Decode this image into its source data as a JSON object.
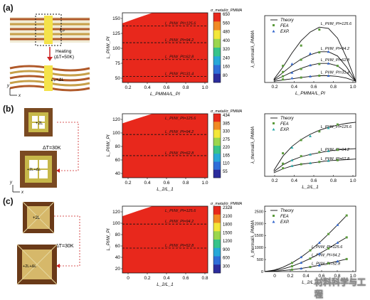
{
  "panels": [
    "(a)",
    "(b)",
    "(c)"
  ],
  "schematics": [
    {
      "heating_label": "Heating",
      "temp_label": "(ΔT=50K)",
      "top_label": "Lₚ",
      "bottom_label": "Lₚ+ΔL",
      "axis_x": "x",
      "axis_y": "y"
    },
    {
      "temp_label": "ΔT=30K",
      "top_label": "+2L",
      "bottom_label": "+2L+ΔL",
      "axis_x": "x",
      "axis_y": "y"
    },
    {
      "temp_label": "ΔT=30K",
      "top_label": "+2L",
      "bottom_label": "+2L+ΔL",
      "axis_x": "x",
      "axis_y": "y"
    }
  ],
  "chart_data": [
    {
      "type": "heatmap",
      "title": "σ_metal/σ_PMMA",
      "xlabel": "L_PMMA/L_PI",
      "ylabel": "L_PI/W_PI",
      "xlim": [
        0.1,
        1.0
      ],
      "ylim": [
        20,
        150
      ],
      "xticks": [
        "0.2",
        "0.4",
        "0.6",
        "0.8",
        "1.0"
      ],
      "yticks": [
        "50",
        "75",
        "100",
        "125",
        "150"
      ],
      "dashed_lines": [
        125.6,
        94.2,
        62.8,
        31.4
      ],
      "annotations": [
        "L_PI/W_PI=125.6",
        "L_PI/W_PI=94.2",
        "L_PI/W_PI=62.8",
        "L_PI/W_PI=31.4"
      ],
      "colorbar": {
        "ticks": [
          "650",
          "560",
          "480",
          "400",
          "320",
          "240",
          "160",
          "80"
        ],
        "colors": [
          "#e8281c",
          "#f08a26",
          "#f3e73a",
          "#9bd64d",
          "#37c38a",
          "#27a8d8",
          "#2f6ed8",
          "#2b2c9c"
        ]
      }
    },
    {
      "type": "line",
      "xlabel": "L_PMMA/L_PI",
      "ylabel": "λ_thermal/λ_PMMA",
      "xlim": [
        0,
        1.0
      ],
      "xticks": [
        "0.2",
        "0.4",
        "0.6",
        "0.8",
        "1.0"
      ],
      "legend": [
        {
          "label": "Theory",
          "kind": "line"
        },
        {
          "label": "FEA",
          "kind": "square",
          "color": "#5a9a3a"
        },
        {
          "label": "EXP.",
          "kind": "triangle",
          "color": "#3366cc"
        }
      ],
      "series": [
        {
          "label": "L_PI/W_PI=125.6",
          "x": [
            0.1,
            0.2,
            0.3,
            0.4,
            0.5,
            0.6,
            0.7,
            0.8,
            0.9,
            1.0
          ],
          "y": [
            0.05,
            0.25,
            0.48,
            0.68,
            0.82,
            0.9,
            0.88,
            0.72,
            0.4,
            0.02
          ]
        },
        {
          "label": "L_PI/W_PI=94.2",
          "x": [
            0.1,
            0.2,
            0.3,
            0.4,
            0.5,
            0.6,
            0.7,
            0.8,
            0.9,
            1.0
          ],
          "y": [
            0.04,
            0.16,
            0.28,
            0.38,
            0.45,
            0.5,
            0.5,
            0.43,
            0.25,
            0.02
          ]
        },
        {
          "label": "L_PI/W_PI=62.8",
          "x": [
            0.1,
            0.2,
            0.3,
            0.4,
            0.5,
            0.6,
            0.7,
            0.8,
            0.9,
            1.0
          ],
          "y": [
            0.03,
            0.1,
            0.17,
            0.23,
            0.28,
            0.31,
            0.31,
            0.27,
            0.16,
            0.02
          ]
        },
        {
          "label": "L_PI/W_PI=31.4",
          "x": [
            0.1,
            0.2,
            0.3,
            0.4,
            0.5,
            0.6,
            0.7,
            0.8,
            0.9,
            1.0
          ],
          "y": [
            0.02,
            0.04,
            0.06,
            0.08,
            0.1,
            0.11,
            0.11,
            0.1,
            0.07,
            0.02
          ]
        }
      ],
      "fea": [
        [
          0.2,
          0.27
        ],
        [
          0.4,
          0.6
        ],
        [
          0.6,
          0.86
        ],
        [
          0.2,
          0.17
        ],
        [
          0.4,
          0.37
        ],
        [
          0.6,
          0.49
        ],
        [
          0.2,
          0.1
        ],
        [
          0.4,
          0.22
        ],
        [
          0.6,
          0.3
        ],
        [
          0.8,
          0.27
        ],
        [
          0.2,
          0.05
        ],
        [
          0.4,
          0.08
        ],
        [
          0.6,
          0.11
        ]
      ],
      "exp": [
        [
          0.3,
          0.3
        ],
        [
          0.5,
          0.47
        ],
        [
          0.7,
          0.5
        ],
        [
          0.3,
          0.16
        ],
        [
          0.5,
          0.28
        ],
        [
          0.7,
          0.31
        ],
        [
          0.3,
          0.07
        ],
        [
          0.5,
          0.1
        ],
        [
          0.7,
          0.11
        ]
      ]
    },
    {
      "type": "heatmap",
      "title": "σ_metal/σ_PMMA",
      "xlabel": "L_2/L_1",
      "ylabel": "L_PI/W_PI",
      "xlim": [
        0.1,
        1.0
      ],
      "ylim": [
        30,
        125
      ],
      "xticks": [
        "0.2",
        "0.4",
        "0.6",
        "0.8",
        "1.0"
      ],
      "yticks": [
        "40",
        "60",
        "80",
        "100",
        "120"
      ],
      "dashed_lines": [
        125.6,
        94.2,
        62.8
      ],
      "annotations": [
        "L_PI/W_PI=125.6",
        "L_PI/W_PI=94.2",
        "L_PI/W_PI=62.8"
      ],
      "colorbar": {
        "ticks": [
          "434",
          "385",
          "330",
          "275",
          "220",
          "165",
          "110",
          "55"
        ],
        "colors": [
          "#e8281c",
          "#f08a26",
          "#f3e73a",
          "#9bd64d",
          "#37c38a",
          "#27a8d8",
          "#2f6ed8",
          "#2b2c9c"
        ]
      }
    },
    {
      "type": "line",
      "xlabel": "L_2/L_1",
      "ylabel": "λ_thermal/λ_PMMA",
      "xlim": [
        0,
        1.0
      ],
      "xticks": [
        "0.2",
        "0.4",
        "0.6",
        "0.8",
        "1.0"
      ],
      "legend": [
        {
          "label": "Theory",
          "kind": "line"
        },
        {
          "label": "FEA",
          "kind": "square",
          "color": "#5a9a3a"
        },
        {
          "label": "EXP.",
          "kind": "triangle",
          "color": "#2aa8a8"
        }
      ],
      "series": [
        {
          "label": "L_PI/W_PI=125.6",
          "x": [
            0.1,
            0.2,
            0.3,
            0.4,
            0.5,
            0.6,
            0.7,
            0.8,
            0.9,
            1.0
          ],
          "y": [
            0.1,
            0.35,
            0.52,
            0.64,
            0.73,
            0.8,
            0.85,
            0.89,
            0.92,
            0.94
          ]
        },
        {
          "label": "L_PI/W_PI=94.2",
          "x": [
            0.1,
            0.2,
            0.3,
            0.4,
            0.5,
            0.6,
            0.7,
            0.8,
            0.9,
            1.0
          ],
          "y": [
            0.08,
            0.2,
            0.28,
            0.34,
            0.38,
            0.41,
            0.44,
            0.46,
            0.47,
            0.48
          ]
        },
        {
          "label": "L_PI/W_PI=62.8",
          "x": [
            0.1,
            0.2,
            0.3,
            0.4,
            0.5,
            0.6,
            0.7,
            0.8,
            0.9,
            1.0
          ],
          "y": [
            0.06,
            0.13,
            0.18,
            0.21,
            0.23,
            0.25,
            0.27,
            0.28,
            0.29,
            0.3
          ]
        }
      ],
      "fea": [
        [
          0.2,
          0.4
        ],
        [
          0.4,
          0.63
        ],
        [
          0.6,
          0.78
        ],
        [
          0.8,
          0.9
        ],
        [
          0.2,
          0.22
        ],
        [
          0.4,
          0.35
        ],
        [
          0.6,
          0.42
        ],
        [
          0.8,
          0.46
        ],
        [
          0.2,
          0.14
        ],
        [
          0.4,
          0.21
        ],
        [
          0.6,
          0.25
        ],
        [
          0.8,
          0.28
        ]
      ],
      "exp": [
        [
          0.3,
          0.5
        ],
        [
          0.5,
          0.7
        ],
        [
          0.7,
          0.84
        ],
        [
          0.3,
          0.28
        ],
        [
          0.5,
          0.38
        ],
        [
          0.7,
          0.44
        ],
        [
          0.3,
          0.18
        ],
        [
          0.5,
          0.23
        ],
        [
          0.7,
          0.27
        ]
      ]
    },
    {
      "type": "heatmap",
      "title": "σ_metal/σ_PMMA",
      "xlabel": "L_2/L_1",
      "ylabel": "L_PI/W_PI",
      "xlim": [
        0.1,
        0.9
      ],
      "ylim": [
        10,
        125
      ],
      "xticks": [
        "0",
        "0.2",
        "0.4",
        "0.6",
        "0.8"
      ],
      "yticks": [
        "20",
        "40",
        "60",
        "80",
        "100",
        "120"
      ],
      "dashed_lines": [
        125.6,
        94.2,
        52.8
      ],
      "annotations": [
        "L_PI/W_PI=125.6",
        "L_PI/W_PI=94.2",
        "L_PI/W_PI=52.8"
      ],
      "colorbar": {
        "ticks": [
          "2328",
          "2100",
          "1800",
          "1500",
          "1200",
          "900",
          "600",
          "300"
        ],
        "colors": [
          "#e8281c",
          "#f08a26",
          "#f3e73a",
          "#9bd64d",
          "#37c38a",
          "#27a8d8",
          "#2f6ed8",
          "#2b2c9c"
        ]
      }
    },
    {
      "type": "line",
      "xlabel": "L_2/L_1",
      "ylabel": "λ_thermal/λ_PMMA",
      "xlim": [
        0,
        1.0
      ],
      "ylim": [
        0,
        2500
      ],
      "xticks": [
        "0",
        "0.2",
        "0.4",
        "0.6",
        "0.8",
        "1.0"
      ],
      "yticks": [
        "0",
        "500",
        "1000",
        "1500",
        "2000",
        "2500"
      ],
      "legend": [
        {
          "label": "Theory",
          "kind": "line"
        },
        {
          "label": "FEA",
          "kind": "square",
          "color": "#5a9a3a"
        },
        {
          "label": "EXP.",
          "kind": "triangle",
          "color": "#3366cc"
        }
      ],
      "series": [
        {
          "label": "L_PI/W_PI=125.6",
          "x": [
            0,
            0.1,
            0.2,
            0.3,
            0.4,
            0.5,
            0.6,
            0.7,
            0.8,
            0.9
          ],
          "y": [
            0,
            60,
            180,
            360,
            600,
            880,
            1200,
            1560,
            1940,
            2330
          ]
        },
        {
          "label": "L_PI/W_PI=94.2",
          "x": [
            0,
            0.1,
            0.2,
            0.3,
            0.4,
            0.5,
            0.6,
            0.7,
            0.8,
            0.9
          ],
          "y": [
            0,
            40,
            110,
            220,
            370,
            540,
            740,
            960,
            1200,
            1420
          ]
        },
        {
          "label": "L_PI/W_PI=52.8",
          "x": [
            0,
            0.1,
            0.2,
            0.3,
            0.4,
            0.5,
            0.6,
            0.7,
            0.8,
            0.9
          ],
          "y": [
            0,
            15,
            40,
            80,
            130,
            190,
            260,
            340,
            430,
            520
          ]
        }
      ],
      "fea": [
        [
          0.3,
          360
        ],
        [
          0.5,
          880
        ],
        [
          0.7,
          1560
        ],
        [
          0.9,
          2330
        ],
        [
          0.3,
          220
        ],
        [
          0.5,
          540
        ],
        [
          0.7,
          960
        ],
        [
          0.9,
          1420
        ],
        [
          0.3,
          80
        ],
        [
          0.5,
          190
        ],
        [
          0.7,
          340
        ],
        [
          0.9,
          520
        ]
      ],
      "exp": [
        [
          0.4,
          600
        ],
        [
          0.6,
          1200
        ],
        [
          0.8,
          1940
        ],
        [
          0.4,
          370
        ],
        [
          0.6,
          740
        ],
        [
          0.8,
          1200
        ],
        [
          0.4,
          130
        ],
        [
          0.6,
          260
        ],
        [
          0.8,
          430
        ]
      ]
    }
  ],
  "watermark": "材料科学与工程"
}
